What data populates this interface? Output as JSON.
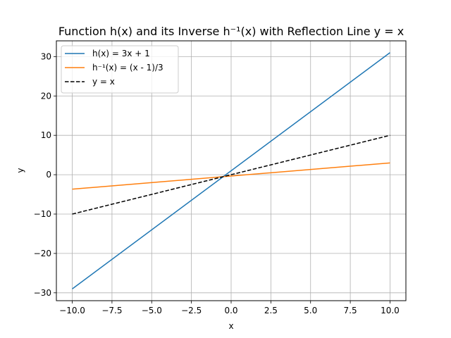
{
  "chart_data": {
    "type": "line",
    "title": "Function h(x) and its Inverse h⁻¹(x) with Reflection Line y = x",
    "xlabel": "x",
    "ylabel": "y",
    "xlim": [
      -11,
      11
    ],
    "ylim": [
      -32,
      34
    ],
    "xticks": [
      -10.0,
      -7.5,
      -5.0,
      -2.5,
      0.0,
      2.5,
      5.0,
      7.5,
      10.0
    ],
    "xtick_labels": [
      "−10.0",
      "−7.5",
      "−5.0",
      "−2.5",
      "0.0",
      "2.5",
      "5.0",
      "7.5",
      "10.0"
    ],
    "yticks": [
      -30,
      -20,
      -10,
      0,
      10,
      20,
      30
    ],
    "ytick_labels": [
      "−30",
      "−20",
      "−10",
      "0",
      "10",
      "20",
      "30"
    ],
    "grid": true,
    "legend_position": "top-left",
    "series": [
      {
        "name": "h(x) = 3x + 1",
        "color": "#1f77b4",
        "dash": "solid",
        "x": [
          -10,
          10
        ],
        "y": [
          -29,
          31
        ]
      },
      {
        "name": "h⁻¹(x) = (x - 1)/3",
        "color": "#ff7f0e",
        "dash": "solid",
        "x": [
          -10,
          10
        ],
        "y": [
          -3.6667,
          3
        ]
      },
      {
        "name": "y = x",
        "color": "#000000",
        "dash": "dashed",
        "x": [
          -10,
          10
        ],
        "y": [
          -10,
          10
        ]
      }
    ]
  }
}
